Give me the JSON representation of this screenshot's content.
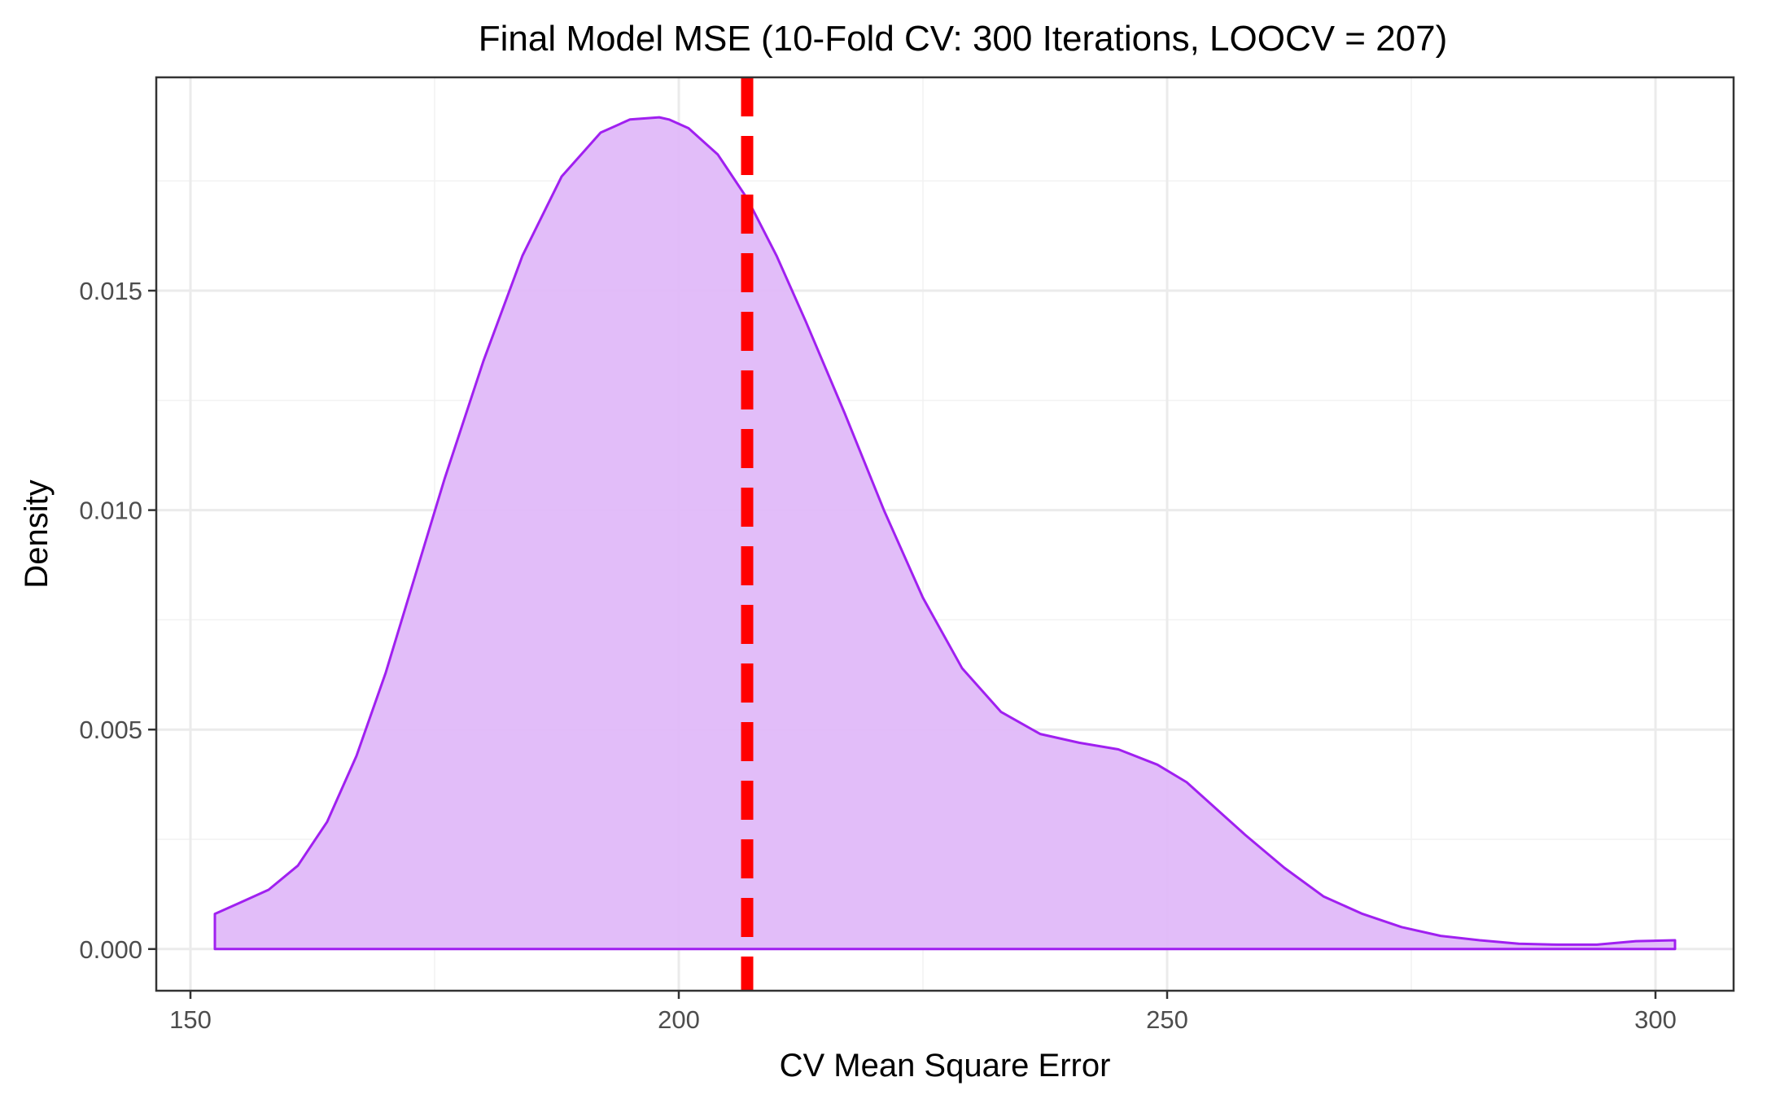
{
  "chart_data": {
    "type": "area",
    "title": "Final Model MSE (10-Fold CV: 300 Iterations, LOOCV = 207)",
    "xlabel": "CV Mean Square Error",
    "ylabel": "Density",
    "xlim": [
      146.5,
      308
    ],
    "ylim": [
      -0.00095,
      0.01986
    ],
    "x_ticks": [
      150,
      200,
      250,
      300
    ],
    "x_tick_labels": [
      "150",
      "200",
      "250",
      "300"
    ],
    "y_ticks": [
      0.0,
      0.005,
      0.01,
      0.015
    ],
    "y_tick_labels": [
      "0.000",
      "0.005",
      "0.010",
      "0.015"
    ],
    "grid": true,
    "legend": "none",
    "series": [
      {
        "fill": "#e0b9f9",
        "stroke": "#a020f0",
        "x": [
          152.5,
          155,
          158,
          161,
          164,
          167,
          170,
          173,
          176,
          180,
          184,
          188,
          192,
          195,
          198,
          199,
          201,
          204,
          207,
          210,
          213,
          217,
          221,
          225,
          229,
          233,
          237,
          241,
          245,
          249,
          252,
          255,
          258,
          262,
          266,
          270,
          274,
          278,
          282,
          286,
          290,
          294,
          298,
          302
        ],
        "values": [
          0.0008,
          0.00105,
          0.00135,
          0.0019,
          0.0029,
          0.0044,
          0.0063,
          0.0085,
          0.0107,
          0.0134,
          0.0158,
          0.0176,
          0.0186,
          0.0189,
          0.01895,
          0.0189,
          0.0187,
          0.0181,
          0.0171,
          0.0158,
          0.0143,
          0.0122,
          0.01,
          0.008,
          0.0064,
          0.0054,
          0.0049,
          0.0047,
          0.00455,
          0.0042,
          0.0038,
          0.0032,
          0.0026,
          0.00185,
          0.0012,
          0.0008,
          0.0005,
          0.0003,
          0.0002,
          0.00012,
          0.0001,
          0.0001,
          0.00018,
          0.0002
        ]
      }
    ],
    "vline": {
      "x": 207,
      "color": "#ff0000",
      "style": "dashed"
    }
  }
}
